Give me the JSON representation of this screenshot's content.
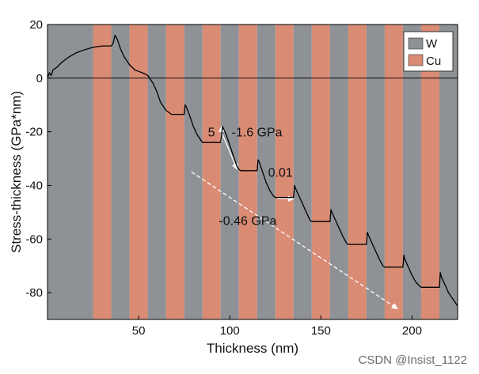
{
  "chart_data": {
    "type": "line",
    "xlabel": "Thickness (nm)",
    "ylabel": "Stress-thickness (GPa*nm)",
    "xlim": [
      0,
      225
    ],
    "ylim": [
      -90,
      20
    ],
    "xticks": [
      50,
      100,
      150,
      200
    ],
    "yticks": [
      20,
      0,
      -20,
      -40,
      -60,
      -80
    ],
    "background_bands": [
      {
        "start": 0,
        "end": 25,
        "material": "W"
      },
      {
        "start": 25,
        "end": 35,
        "material": "Cu"
      },
      {
        "start": 35,
        "end": 45,
        "material": "W"
      },
      {
        "start": 45,
        "end": 55,
        "material": "Cu"
      },
      {
        "start": 55,
        "end": 65,
        "material": "W"
      },
      {
        "start": 65,
        "end": 75,
        "material": "Cu"
      },
      {
        "start": 75,
        "end": 85,
        "material": "W"
      },
      {
        "start": 85,
        "end": 95,
        "material": "Cu"
      },
      {
        "start": 95,
        "end": 105,
        "material": "W"
      },
      {
        "start": 105,
        "end": 115,
        "material": "Cu"
      },
      {
        "start": 115,
        "end": 125,
        "material": "W"
      },
      {
        "start": 125,
        "end": 135,
        "material": "Cu"
      },
      {
        "start": 135,
        "end": 145,
        "material": "W"
      },
      {
        "start": 145,
        "end": 155,
        "material": "Cu"
      },
      {
        "start": 155,
        "end": 165,
        "material": "W"
      },
      {
        "start": 165,
        "end": 175,
        "material": "Cu"
      },
      {
        "start": 175,
        "end": 185,
        "material": "W"
      },
      {
        "start": 185,
        "end": 195,
        "material": "Cu"
      },
      {
        "start": 195,
        "end": 205,
        "material": "W"
      },
      {
        "start": 205,
        "end": 215,
        "material": "Cu"
      },
      {
        "start": 215,
        "end": 225,
        "material": "W"
      }
    ],
    "legend": {
      "placement": "top-right",
      "entries": [
        {
          "label": "W",
          "color": "#8e9196"
        },
        {
          "label": "Cu",
          "color": "#d98b74"
        }
      ]
    },
    "series": [
      {
        "x": [
          0,
          1,
          2,
          3,
          5,
          8,
          12,
          16,
          20,
          25,
          30,
          35,
          36,
          37,
          38,
          39,
          40,
          42,
          45,
          48,
          50,
          52,
          55,
          58,
          60,
          62,
          65,
          68,
          70,
          72,
          75,
          75.5,
          76,
          78,
          80,
          82,
          85,
          88,
          90,
          92,
          95,
          95.5,
          96,
          98,
          100,
          102,
          104,
          105,
          106,
          108,
          110,
          112,
          115,
          115.5,
          116,
          118,
          120,
          122,
          124,
          125,
          126,
          128,
          130,
          132,
          135,
          135.5,
          136,
          138,
          140,
          142,
          144,
          145,
          146,
          148,
          150,
          152,
          155,
          155.5,
          156,
          158,
          160,
          162,
          164,
          165,
          166,
          168,
          170,
          172,
          175,
          175.5,
          176,
          178,
          180,
          182,
          184,
          185,
          186,
          188,
          190,
          192,
          195,
          195.5,
          196,
          198,
          200,
          202,
          204,
          205,
          206,
          208,
          210,
          212,
          215,
          215.5,
          216,
          218,
          220,
          222,
          225
        ],
        "y": [
          0,
          2,
          1,
          3,
          4,
          6,
          8,
          9.5,
          10.5,
          11.5,
          12,
          12,
          13,
          16,
          15,
          13,
          11,
          8,
          5,
          3,
          2.5,
          2,
          1,
          -2,
          -5,
          -9,
          -12,
          -13.5,
          -13.5,
          -13.5,
          -13.5,
          -10,
          -10.5,
          -14,
          -18,
          -21,
          -24,
          -24,
          -24,
          -24,
          -24,
          -21,
          -18,
          -21,
          -25,
          -29,
          -33,
          -34,
          -34.5,
          -34.5,
          -34.5,
          -34.5,
          -34.5,
          -30.5,
          -31,
          -35,
          -39,
          -42,
          -44,
          -44.5,
          -44.5,
          -44.5,
          -44.5,
          -44.5,
          -44.5,
          -40,
          -41,
          -44,
          -47,
          -50,
          -53,
          -53.5,
          -53.5,
          -53.5,
          -53.5,
          -53.5,
          -53.5,
          -49,
          -50,
          -53,
          -56,
          -59,
          -61.5,
          -62,
          -62,
          -62,
          -62,
          -62,
          -62,
          -57.5,
          -58.5,
          -61.5,
          -64.5,
          -67.5,
          -70,
          -70.5,
          -70.5,
          -70.5,
          -70.5,
          -70.5,
          -70.5,
          -66,
          -67.5,
          -70.5,
          -73.5,
          -76,
          -77.5,
          -78,
          -78,
          -78,
          -78,
          -78,
          -78,
          -72.5,
          -74,
          -77,
          -80,
          -82,
          -85
        ]
      }
    ],
    "annotations": [
      {
        "text": "5",
        "x": 88,
        "y": -20
      },
      {
        "text": "-1.6 GPa",
        "x": 101,
        "y": -20
      },
      {
        "text": "0.01",
        "x": 121,
        "y": -35
      },
      {
        "text": "-0.46 GPa",
        "x": 94,
        "y": -53
      }
    ]
  },
  "watermark": "CSDN @Insist_1122"
}
